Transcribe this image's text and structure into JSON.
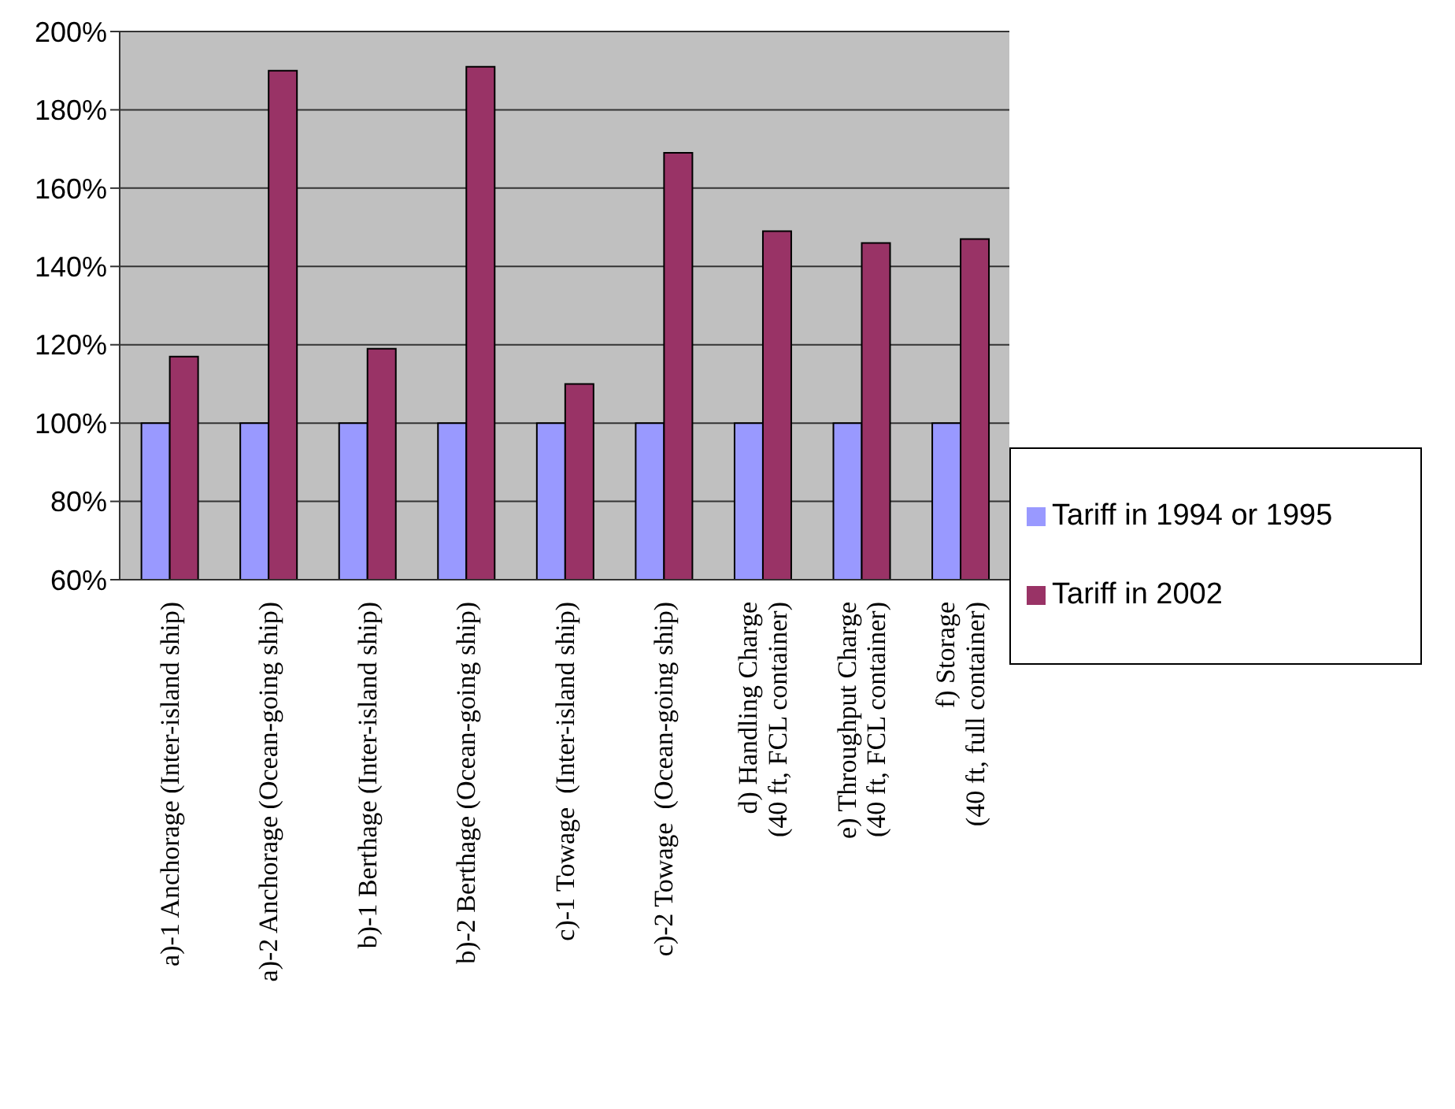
{
  "chart_data": {
    "type": "bar",
    "categories": [
      "a)-1 Anchorage (Inter-island ship)",
      "a)-2 Anchorage (Ocean-going ship)",
      "b)-1 Berthage (Inter-island ship)",
      "b)-2 Berthage (Ocean-going ship)",
      "c)-1 Towage  (Inter-island ship)",
      "c)-2 Towage  (Ocean-going ship)",
      "d) Handling Charge\n(40 ft, FCL container)",
      "e) Throughput Charge\n(40 ft, FCL container)",
      "f) Storage\n(40 ft, full container)"
    ],
    "series": [
      {
        "name": "Tariff in 1994 or 1995",
        "color": "#9999ff",
        "values": [
          100,
          100,
          100,
          100,
          100,
          100,
          100,
          100,
          100
        ]
      },
      {
        "name": "Tariff in 2002",
        "color": "#993366",
        "values": [
          117,
          190,
          119,
          191,
          110,
          169,
          149,
          146,
          147
        ]
      }
    ],
    "ylim": [
      60,
      200
    ],
    "yticks": [
      {
        "value": 60,
        "label": "60%"
      },
      {
        "value": 80,
        "label": "80%"
      },
      {
        "value": 100,
        "label": "100%"
      },
      {
        "value": 120,
        "label": "120%"
      },
      {
        "value": 140,
        "label": "140%"
      },
      {
        "value": 160,
        "label": "160%"
      },
      {
        "value": 180,
        "label": "180%"
      },
      {
        "value": 200,
        "label": "200%"
      }
    ],
    "grid": "y",
    "legend": "right"
  }
}
